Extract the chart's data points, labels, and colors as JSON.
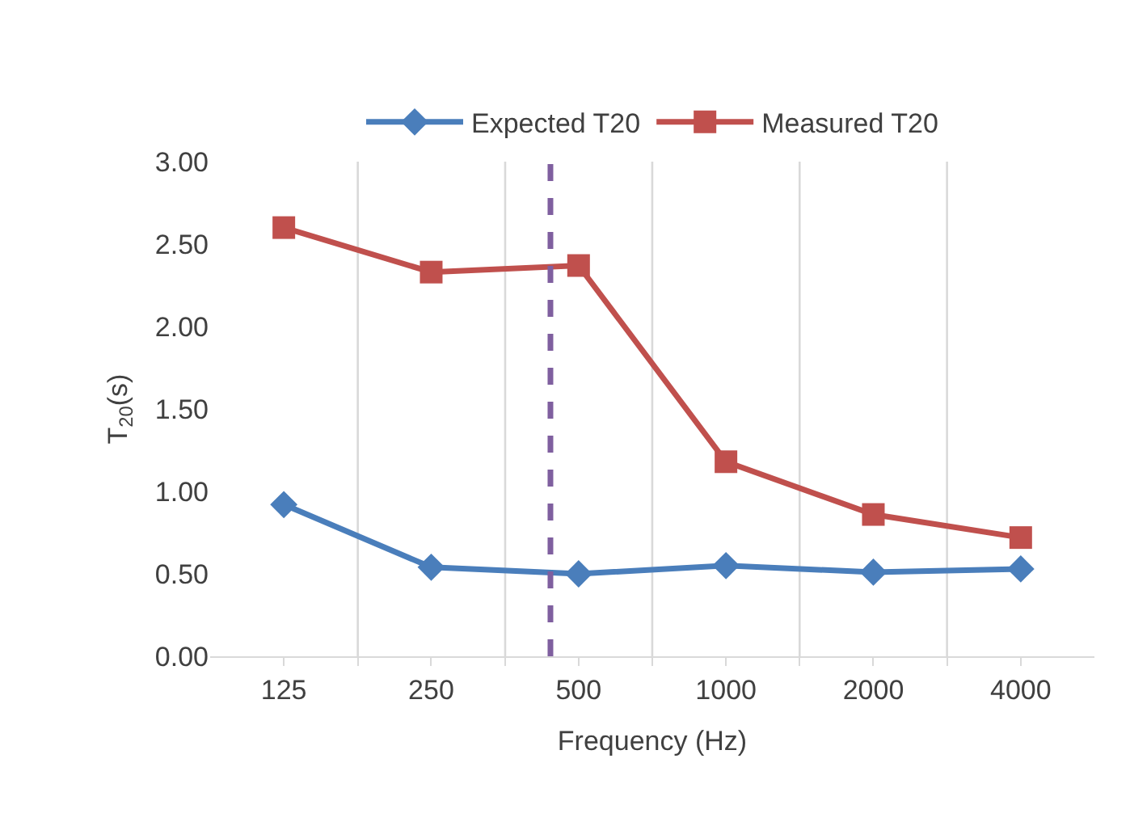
{
  "chart_data": {
    "type": "line",
    "xlabel": "Frequency (Hz)",
    "ylabel": "T$_{20}$(s)",
    "log": "x",
    "x": [
      125,
      250,
      500,
      1000,
      2000,
      4000
    ],
    "series": [
      {
        "name": "Expected T20",
        "color": "#4a7ebb",
        "marker": "diamond",
        "values": [
          0.92,
          0.54,
          0.5,
          0.55,
          0.51,
          0.53
        ]
      },
      {
        "name": "Measured T20",
        "color": "#c0504d",
        "marker": "square",
        "values": [
          2.6,
          2.33,
          2.37,
          1.18,
          0.86,
          0.72
        ]
      }
    ],
    "xlim": [
      88.4,
      5657
    ],
    "xticks": [
      125,
      250,
      500,
      1000,
      2000,
      4000,
      {
        "value": 177,
        "label": null
      },
      {
        "value": 354,
        "label": null
      },
      {
        "value": 707,
        "label": null
      },
      {
        "value": 1414,
        "label": null
      },
      {
        "value": 2828,
        "label": null
      }
    ],
    "ylim": [
      0,
      3
    ],
    "yticks": [
      {
        "value": 0,
        "label": "0.00"
      },
      {
        "value": 0.5,
        "label": "0.50"
      },
      {
        "value": 1,
        "label": "1.00"
      },
      {
        "value": 1.5,
        "label": "1.50"
      },
      {
        "value": 2,
        "label": "2.00"
      },
      {
        "value": 2.5,
        "label": "2.50"
      },
      {
        "value": 3,
        "label": "3.00"
      }
    ],
    "grid": "x",
    "legend": "top",
    "line_style": "solid",
    "ref_lines": [
      {
        "axis": "x",
        "value": 438,
        "color": "#7f5f9f",
        "line_style": "dashed"
      }
    ]
  }
}
